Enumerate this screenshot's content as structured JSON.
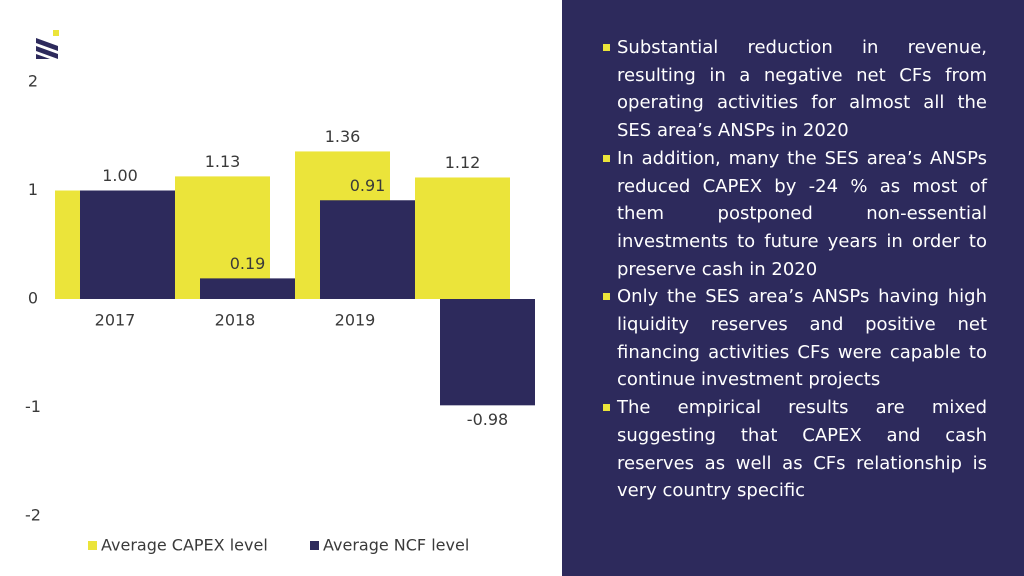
{
  "chart_data": {
    "type": "bar",
    "categories": [
      "2017",
      "2018",
      "2019",
      null
    ],
    "series": [
      {
        "name": "Average CAPEX level",
        "color": "#ebe43a",
        "values": [
          1.0,
          1.13,
          1.36,
          1.12
        ],
        "value_labels": [
          null,
          "1.13",
          "1.36",
          "1.12"
        ]
      },
      {
        "name": "Average NCF level",
        "color": "#2d2a5c",
        "values": [
          1.0,
          0.19,
          0.91,
          -0.98
        ],
        "value_labels": [
          "1.00",
          "0.19",
          "0.91",
          "-0.98"
        ]
      }
    ],
    "ylim": [
      -2,
      2
    ],
    "yticks": [
      -2,
      -1,
      0,
      1,
      2
    ],
    "grid": false
  },
  "panel": {
    "bullets": [
      "Substantial reduction in revenue, resulting in a negative net CFs from operating activities for almost all the SES area’s ANSPs in 2020",
      "In addition, many the SES area’s ANSPs reduced CAPEX by -24 % as most of them postponed non-essential investments to future years in order to preserve cash in 2020",
      "Only the SES area’s ANSPs having high liquidity reserves and positive net financing activities CFs were capable to continue investment projects",
      "The empirical results are mixed suggesting that CAPEX and cash reserves as well as CFs relationship is very country specific"
    ]
  }
}
